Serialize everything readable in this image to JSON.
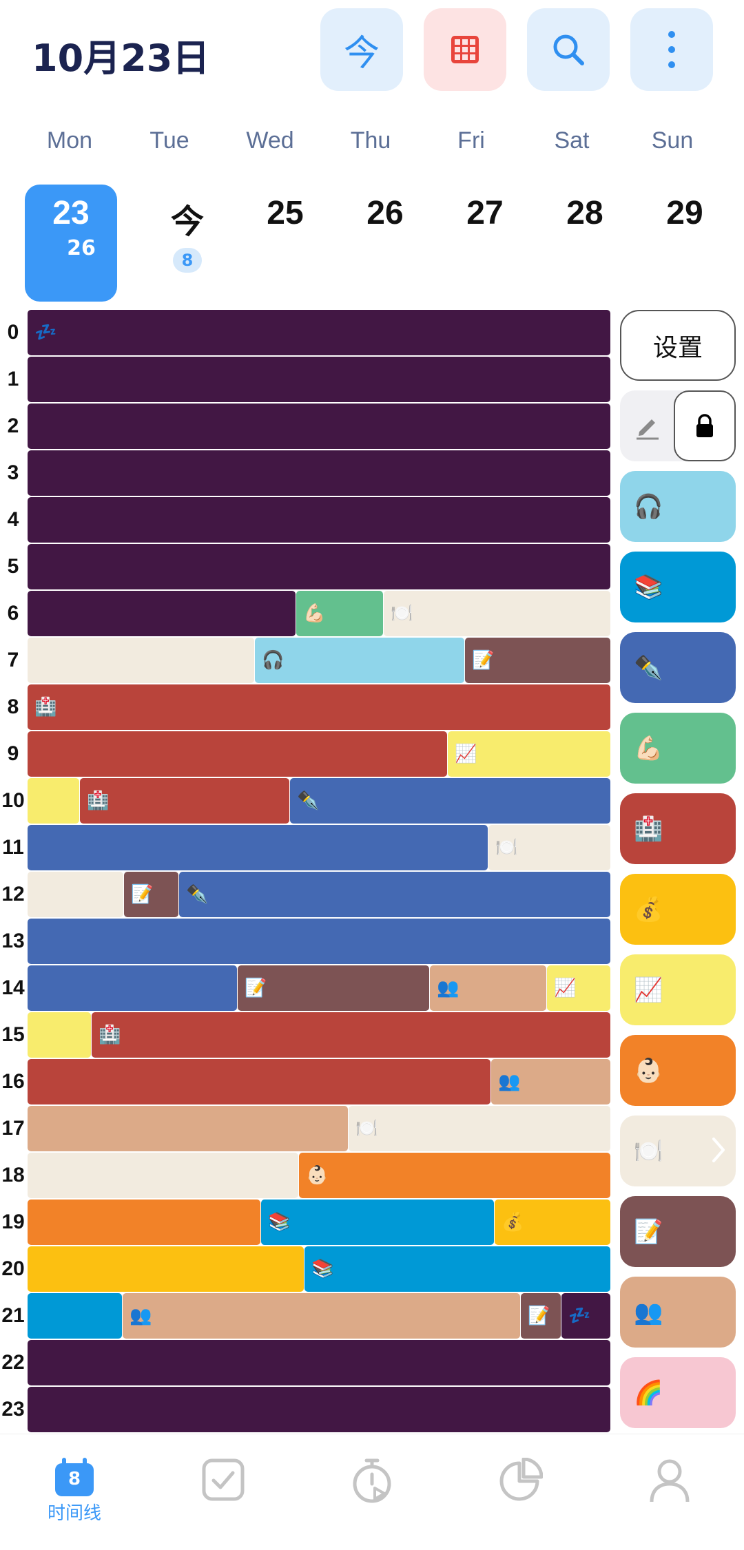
{
  "header": {
    "date_title": "10月23日",
    "today_label": "今"
  },
  "weekdays": [
    "Mon",
    "Tue",
    "Wed",
    "Thu",
    "Fri",
    "Sat",
    "Sun"
  ],
  "days": [
    {
      "num": "23",
      "sub": "26",
      "selected": true
    },
    {
      "num": "今",
      "badge": "8"
    },
    {
      "num": "25"
    },
    {
      "num": "26"
    },
    {
      "num": "27"
    },
    {
      "num": "28"
    },
    {
      "num": "29"
    }
  ],
  "hours": [
    "0",
    "1",
    "2",
    "3",
    "4",
    "5",
    "6",
    "7",
    "8",
    "9",
    "10",
    "11",
    "12",
    "13",
    "14",
    "15",
    "16",
    "17",
    "18",
    "19",
    "20",
    "21",
    "22",
    "23"
  ],
  "colors": {
    "sleep": "#421744",
    "workout": "#63c08e",
    "meal": "#f2ebdf",
    "listen": "#8fd5ea",
    "note": "#7d5354",
    "hospital": "#b9443b",
    "chart": "#f8ec6d",
    "write": "#4469b3",
    "social": "#dcaa88",
    "baby": "#f28228",
    "read": "#0099d6",
    "money": "#fcc011",
    "rainbow": "#f7c7d2"
  },
  "side": {
    "settings_label": "设置",
    "categories": [
      {
        "icon": "🎧",
        "color": "#8fd5ea"
      },
      {
        "icon": "📚",
        "color": "#0099d6"
      },
      {
        "icon": "✒️",
        "color": "#4469b3"
      },
      {
        "icon": "💪🏻",
        "color": "#63c08e"
      },
      {
        "icon": "🏥",
        "color": "#b9443b"
      },
      {
        "icon": "💰",
        "color": "#fcc011"
      },
      {
        "icon": "📈",
        "color": "#f8ec6d"
      },
      {
        "icon": "👶🏻",
        "color": "#f28228"
      },
      {
        "icon": "🍽️",
        "color": "#f2ebdf"
      },
      {
        "icon": "📝",
        "color": "#7d5354"
      },
      {
        "icon": "👥",
        "color": "#dcaa88"
      },
      {
        "icon": "🌈",
        "color": "#f7c7d2"
      }
    ]
  },
  "schedule": [
    [
      {
        "cat": "sleep",
        "start": 0,
        "end": 1,
        "icon": "💤"
      }
    ],
    [
      {
        "cat": "sleep",
        "start": 0,
        "end": 1
      }
    ],
    [
      {
        "cat": "sleep",
        "start": 0,
        "end": 1
      }
    ],
    [
      {
        "cat": "sleep",
        "start": 0,
        "end": 1
      }
    ],
    [
      {
        "cat": "sleep",
        "start": 0,
        "end": 1
      }
    ],
    [
      {
        "cat": "sleep",
        "start": 0,
        "end": 1
      }
    ],
    [
      {
        "cat": "sleep",
        "start": 0,
        "end": 0.46
      },
      {
        "cat": "workout",
        "start": 0.46,
        "end": 0.61,
        "icon": "💪🏻"
      },
      {
        "cat": "meal",
        "start": 0.61,
        "end": 1,
        "icon": "🍽️"
      }
    ],
    [
      {
        "cat": "meal",
        "start": 0,
        "end": 0.39
      },
      {
        "cat": "listen",
        "start": 0.39,
        "end": 0.75,
        "icon": "🎧"
      },
      {
        "cat": "note",
        "start": 0.75,
        "end": 1,
        "icon": "📝"
      }
    ],
    [
      {
        "cat": "hospital",
        "start": 0,
        "end": 1,
        "icon": "🏥"
      }
    ],
    [
      {
        "cat": "hospital",
        "start": 0,
        "end": 0.72
      },
      {
        "cat": "chart",
        "start": 0.72,
        "end": 1,
        "icon": "📈"
      }
    ],
    [
      {
        "cat": "chart",
        "start": 0,
        "end": 0.09
      },
      {
        "cat": "hospital",
        "start": 0.09,
        "end": 0.45,
        "icon": "🏥"
      },
      {
        "cat": "write",
        "start": 0.45,
        "end": 1,
        "icon": "✒️"
      }
    ],
    [
      {
        "cat": "write",
        "start": 0,
        "end": 0.79
      },
      {
        "cat": "meal",
        "start": 0.79,
        "end": 1,
        "icon": "🍽️"
      }
    ],
    [
      {
        "cat": "meal",
        "start": 0,
        "end": 0.165
      },
      {
        "cat": "note",
        "start": 0.165,
        "end": 0.26,
        "icon": "📝"
      },
      {
        "cat": "write",
        "start": 0.26,
        "end": 1,
        "icon": "✒️"
      }
    ],
    [
      {
        "cat": "write",
        "start": 0,
        "end": 1
      }
    ],
    [
      {
        "cat": "write",
        "start": 0,
        "end": 0.36
      },
      {
        "cat": "note",
        "start": 0.36,
        "end": 0.69,
        "icon": "📝"
      },
      {
        "cat": "social",
        "start": 0.69,
        "end": 0.89,
        "icon": "👥"
      },
      {
        "cat": "chart",
        "start": 0.89,
        "end": 1,
        "icon": "📈"
      }
    ],
    [
      {
        "cat": "chart",
        "start": 0,
        "end": 0.11
      },
      {
        "cat": "hospital",
        "start": 0.11,
        "end": 1,
        "icon": "🏥"
      }
    ],
    [
      {
        "cat": "hospital",
        "start": 0,
        "end": 0.795
      },
      {
        "cat": "social",
        "start": 0.795,
        "end": 1,
        "icon": "👥"
      }
    ],
    [
      {
        "cat": "social",
        "start": 0,
        "end": 0.55
      },
      {
        "cat": "meal",
        "start": 0.55,
        "end": 1,
        "icon": "🍽️"
      }
    ],
    [
      {
        "cat": "meal",
        "start": 0,
        "end": 0.465
      },
      {
        "cat": "baby",
        "start": 0.465,
        "end": 1,
        "icon": "👶🏻"
      }
    ],
    [
      {
        "cat": "baby",
        "start": 0,
        "end": 0.4
      },
      {
        "cat": "read",
        "start": 0.4,
        "end": 0.8,
        "icon": "📚"
      },
      {
        "cat": "money",
        "start": 0.8,
        "end": 1,
        "icon": "💰"
      }
    ],
    [
      {
        "cat": "money",
        "start": 0,
        "end": 0.475
      },
      {
        "cat": "read",
        "start": 0.475,
        "end": 1,
        "icon": "📚"
      }
    ],
    [
      {
        "cat": "read",
        "start": 0,
        "end": 0.163
      },
      {
        "cat": "social",
        "start": 0.163,
        "end": 0.845,
        "icon": "👥"
      },
      {
        "cat": "note",
        "start": 0.845,
        "end": 0.915,
        "icon": "📝"
      },
      {
        "cat": "sleep",
        "start": 0.915,
        "end": 1,
        "icon": "💤"
      }
    ],
    [
      {
        "cat": "sleep",
        "start": 0,
        "end": 1
      }
    ],
    [
      {
        "cat": "sleep",
        "start": 0,
        "end": 1
      }
    ]
  ],
  "tabs": [
    {
      "name": "timeline",
      "label": "时间线",
      "badge": "8",
      "active": true
    },
    {
      "name": "tasks",
      "label": ""
    },
    {
      "name": "timer",
      "label": ""
    },
    {
      "name": "stats",
      "label": ""
    },
    {
      "name": "profile",
      "label": ""
    }
  ]
}
